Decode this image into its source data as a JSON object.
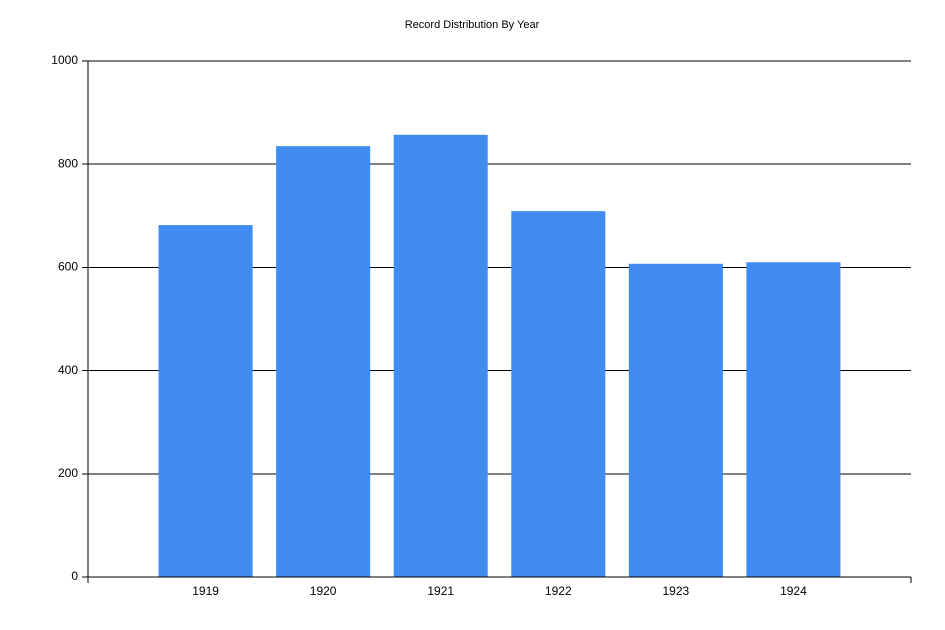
{
  "chart_data": {
    "type": "bar",
    "title": "Record Distribution By Year",
    "categories": [
      "1919",
      "1920",
      "1921",
      "1922",
      "1923",
      "1924"
    ],
    "values": [
      682,
      835,
      857,
      709,
      607,
      610
    ],
    "color": "#418cf0",
    "ylim": [
      0,
      1000
    ],
    "yticks": [
      0,
      200,
      400,
      600,
      800,
      1000
    ],
    "grid": true
  }
}
